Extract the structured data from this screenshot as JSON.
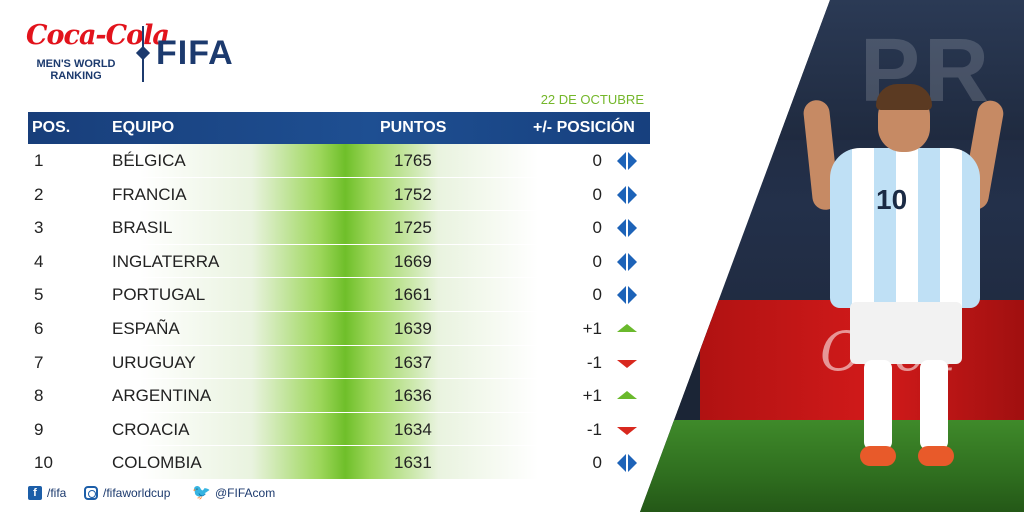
{
  "logo": {
    "sponsor": "Coca-Cola",
    "ranking_label": "MEN'S WORLD RANKING",
    "brand": "FIFA"
  },
  "date": "22 DE OCTUBRE",
  "table": {
    "headers": {
      "pos": "POS.",
      "team": "EQUIPO",
      "points": "PUNTOS",
      "change": "+/- POSICIÓN"
    },
    "rows": [
      {
        "pos": "1",
        "team": "BÉLGICA",
        "points": "1765",
        "change": "0",
        "trend": "same"
      },
      {
        "pos": "2",
        "team": "FRANCIA",
        "points": "1752",
        "change": "0",
        "trend": "same"
      },
      {
        "pos": "3",
        "team": "BRASIL",
        "points": "1725",
        "change": "0",
        "trend": "same"
      },
      {
        "pos": "4",
        "team": "INGLATERRA",
        "points": "1669",
        "change": "0",
        "trend": "same"
      },
      {
        "pos": "5",
        "team": "PORTUGAL",
        "points": "1661",
        "change": "0",
        "trend": "same"
      },
      {
        "pos": "6",
        "team": "ESPAÑA",
        "points": "1639",
        "change": "+1",
        "trend": "up"
      },
      {
        "pos": "7",
        "team": "URUGUAY",
        "points": "1637",
        "change": "-1",
        "trend": "down"
      },
      {
        "pos": "8",
        "team": "ARGENTINA",
        "points": "1636",
        "change": "+1",
        "trend": "up"
      },
      {
        "pos": "9",
        "team": "CROACIA",
        "points": "1634",
        "change": "-1",
        "trend": "down"
      },
      {
        "pos": "10",
        "team": "COLOMBIA",
        "points": "1631",
        "change": "0",
        "trend": "same"
      }
    ]
  },
  "footer": {
    "facebook": "/fifa",
    "instagram": "/fifaworldcup",
    "twitter": "@FIFAcom"
  },
  "icons": {
    "same": "up-down-arrows-icon",
    "up": "triangle-up-icon",
    "down": "triangle-down-icon"
  },
  "colors": {
    "header_blue": "#1e4f92",
    "brand_blue": "#1c3a6e",
    "accent_green": "#74b72a",
    "row_green": "#6fbf2a",
    "same_blue": "#1d63b8",
    "up_green": "#6ab92c",
    "down_red": "#d8281e",
    "coca_cola_red": "#e2131c"
  }
}
